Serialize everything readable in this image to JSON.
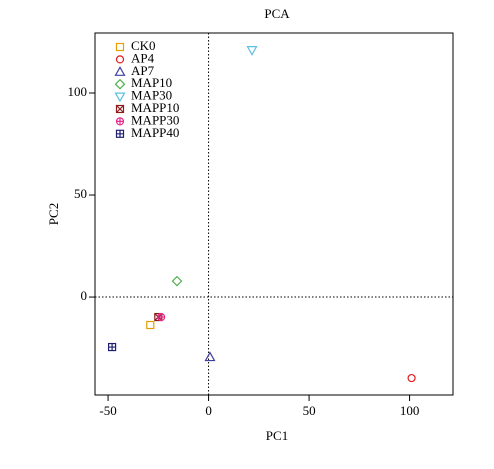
{
  "chart_data": {
    "type": "scatter",
    "title": "PCA",
    "x_label": "PC1",
    "y_label": "PC2",
    "xlim": [
      -56.5,
      121.6
    ],
    "ylim": [
      -48,
      129.4
    ],
    "xticks": [
      -50,
      0,
      50,
      100
    ],
    "yticks": [
      0,
      50,
      100
    ],
    "legend": "top-left",
    "series": [
      {
        "name": "CK0",
        "color": "#e69f00",
        "shape": "square",
        "x": [
          -29
        ],
        "values": [
          -13.7
        ]
      },
      {
        "name": "AP4",
        "color": "#e41a1c",
        "shape": "circle",
        "x": [
          101
        ],
        "values": [
          -39.7
        ]
      },
      {
        "name": "AP7",
        "color": "#3f3f9f",
        "shape": "triangle",
        "x": [
          0.7
        ],
        "values": [
          -29.4
        ]
      },
      {
        "name": "MAP10",
        "color": "#4daf4a",
        "shape": "diamond",
        "x": [
          -15.7
        ],
        "values": [
          7.8
        ]
      },
      {
        "name": "MAP30",
        "color": "#5bc0de",
        "shape": "triangle-down",
        "x": [
          21.6
        ],
        "values": [
          121
        ]
      },
      {
        "name": "MAPP10",
        "color": "#8b1a1a",
        "shape": "square-x",
        "x": [
          -25
        ],
        "values": [
          -9.8
        ]
      },
      {
        "name": "MAPP30",
        "color": "#e7298a",
        "shape": "circle-plus",
        "x": [
          -23.6
        ],
        "values": [
          -9.8
        ]
      },
      {
        "name": "MAPP40",
        "color": "#1f1f6f",
        "shape": "square-plus",
        "x": [
          -48
        ],
        "values": [
          -24.5
        ]
      }
    ]
  }
}
